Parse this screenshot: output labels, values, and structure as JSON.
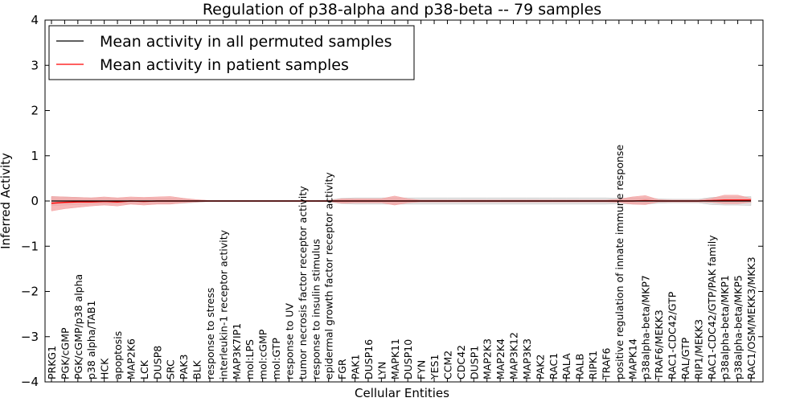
{
  "chart_data": {
    "type": "line",
    "title": "Regulation of p38-alpha and p38-beta -- 79 samples",
    "xlabel": "Cellular Entities",
    "ylabel": "Inferred Activity",
    "ylim": [
      -4,
      4
    ],
    "yticks": [
      -4,
      -3,
      -2,
      -1,
      0,
      1,
      2,
      3,
      4
    ],
    "grid": false,
    "legend_position": "top-left",
    "categories": [
      "PRKG1",
      "PGK/cGMP",
      "PGK/cGMP/p38 alpha",
      "p38 alpha/TAB1",
      "HCK",
      "apoptosis",
      "MAP2K6",
      "LCK",
      "DUSP8",
      "SRC",
      "PAK3",
      "BLK",
      "response to stress",
      "interleukin-1 receptor activity",
      "MAP3K7IP1",
      "mol:LPS",
      "mol:cGMP",
      "mol:GTP",
      "response to UV",
      "tumor necrosis factor receptor activity",
      "response to insulin stimulus",
      "epidermal growth factor receptor activity",
      "FGR",
      "PAK1",
      "DUSP16",
      "LYN",
      "MAPK11",
      "DUSP10",
      "FYN",
      "YES1",
      "CCM2",
      "CDC42",
      "DUSP1",
      "MAP2K3",
      "MAP2K4",
      "MAP3K12",
      "MAP3K3",
      "PAK2",
      "RAC1",
      "RALA",
      "RALB",
      "RIPK1",
      "TRAF6",
      "positive regulation of innate immune response",
      "MAPK14",
      "p38alpha-beta/MKP7",
      "TRAF6/MEKK3",
      "RAC1-CDC42/GTP",
      "RAL/GTP",
      "RIP1/MEKK3",
      "RAC1-CDC42/GTP/PAK family",
      "p38alpha-beta/MKP1",
      "p38alpha-beta/MKP5",
      "RAC1/OSM/MEKK3/MKK3"
    ],
    "series": [
      {
        "name": "Mean activity in all permuted samples",
        "color": "#000000",
        "values": [
          0,
          0,
          0,
          0,
          0,
          0,
          0,
          0,
          0,
          0,
          0,
          0,
          0,
          0,
          0,
          0,
          0,
          0,
          0,
          0,
          0,
          0,
          0,
          0,
          0,
          0,
          0,
          0,
          0,
          0,
          0,
          0,
          0,
          0,
          0,
          0,
          0,
          0,
          0,
          0,
          0,
          0,
          0,
          0,
          0,
          0,
          0,
          0,
          0,
          0,
          0,
          0,
          0,
          0
        ],
        "band": {
          "color": "#c8c8c8",
          "lower": [
            -0.1,
            -0.09,
            -0.08,
            -0.07,
            -0.07,
            -0.06,
            -0.06,
            -0.06,
            -0.06,
            -0.06,
            -0.05,
            -0.03,
            -0.01,
            -0.01,
            -0.01,
            -0.01,
            -0.01,
            -0.01,
            -0.01,
            -0.01,
            -0.01,
            -0.02,
            -0.06,
            -0.07,
            -0.07,
            -0.07,
            -0.07,
            -0.07,
            -0.07,
            -0.07,
            -0.07,
            -0.07,
            -0.07,
            -0.07,
            -0.07,
            -0.07,
            -0.07,
            -0.07,
            -0.07,
            -0.07,
            -0.07,
            -0.07,
            -0.07,
            -0.06,
            -0.07,
            -0.07,
            -0.05,
            -0.04,
            -0.04,
            -0.04,
            -0.08,
            -0.09,
            -0.09,
            -0.1
          ],
          "upper": [
            0.1,
            0.09,
            0.08,
            0.07,
            0.07,
            0.06,
            0.06,
            0.06,
            0.06,
            0.06,
            0.05,
            0.03,
            0.01,
            0.01,
            0.01,
            0.01,
            0.01,
            0.01,
            0.01,
            0.01,
            0.01,
            0.02,
            0.06,
            0.07,
            0.07,
            0.07,
            0.07,
            0.07,
            0.07,
            0.07,
            0.07,
            0.07,
            0.07,
            0.07,
            0.07,
            0.07,
            0.07,
            0.07,
            0.07,
            0.07,
            0.07,
            0.07,
            0.07,
            0.06,
            0.07,
            0.07,
            0.05,
            0.04,
            0.04,
            0.04,
            0.08,
            0.09,
            0.09,
            0.1
          ]
        }
      },
      {
        "name": "Mean activity in patient samples",
        "color": "#ff0000",
        "values": [
          -0.05,
          -0.03,
          -0.02,
          -0.02,
          -0.01,
          -0.02,
          0.0,
          -0.01,
          0.0,
          0.0,
          0.0,
          0.0,
          0.0,
          0.0,
          0.0,
          0.0,
          0.0,
          0.0,
          0.0,
          0.0,
          0.0,
          0.0,
          0.0,
          0.0,
          0.0,
          0.0,
          0.0,
          0.0,
          0.0,
          0.0,
          0.0,
          0.0,
          0.0,
          0.0,
          0.0,
          0.0,
          0.0,
          0.0,
          0.0,
          0.0,
          0.0,
          0.0,
          0.0,
          0.0,
          0.0,
          0.01,
          0.0,
          0.0,
          0.0,
          0.0,
          0.01,
          0.02,
          0.02,
          0.02
        ],
        "band": {
          "color": "#f4a0a0",
          "lower": [
            -0.22,
            -0.17,
            -0.14,
            -0.11,
            -0.09,
            -0.11,
            -0.07,
            -0.09,
            -0.07,
            -0.07,
            -0.04,
            -0.02,
            -0.01,
            -0.01,
            -0.01,
            -0.01,
            -0.01,
            -0.01,
            -0.01,
            -0.01,
            -0.01,
            -0.01,
            -0.05,
            -0.04,
            -0.04,
            -0.04,
            -0.09,
            -0.04,
            -0.02,
            -0.02,
            -0.02,
            -0.02,
            -0.02,
            -0.02,
            -0.02,
            -0.02,
            -0.02,
            -0.02,
            -0.02,
            -0.02,
            -0.02,
            -0.02,
            -0.02,
            -0.03,
            -0.07,
            -0.08,
            -0.02,
            -0.02,
            -0.02,
            -0.02,
            -0.03,
            -0.06,
            -0.06,
            -0.03
          ],
          "upper": [
            0.1,
            0.09,
            0.08,
            0.07,
            0.09,
            0.07,
            0.09,
            0.08,
            0.09,
            0.1,
            0.06,
            0.03,
            0.01,
            0.01,
            0.01,
            0.01,
            0.01,
            0.01,
            0.01,
            0.01,
            0.01,
            0.01,
            0.05,
            0.05,
            0.05,
            0.05,
            0.11,
            0.05,
            0.02,
            0.02,
            0.02,
            0.02,
            0.02,
            0.02,
            0.02,
            0.02,
            0.02,
            0.02,
            0.02,
            0.02,
            0.02,
            0.02,
            0.02,
            0.04,
            0.09,
            0.12,
            0.03,
            0.02,
            0.02,
            0.02,
            0.06,
            0.13,
            0.13,
            0.06
          ]
        }
      }
    ]
  }
}
